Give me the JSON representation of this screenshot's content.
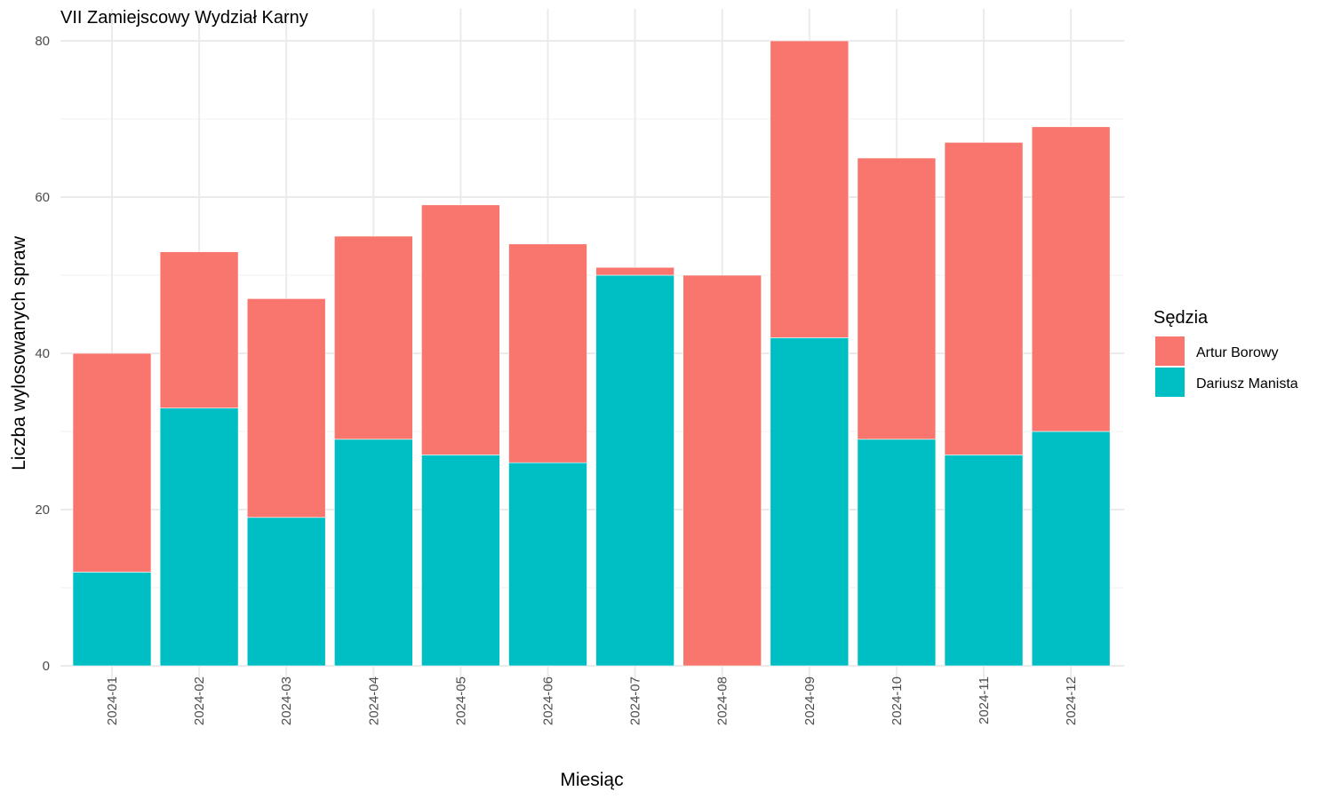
{
  "chart_data": {
    "type": "bar",
    "stacked": true,
    "title": "VII Zamiejscowy Wydział Karny",
    "xlabel": "Miesiąc",
    "ylabel": "Liczba wylosowanych spraw",
    "ylim": [
      0,
      80
    ],
    "yticks": [
      "0",
      "20",
      "40",
      "60",
      "80"
    ],
    "grid": true,
    "legend_position": "right",
    "legend_title": "Sędzia",
    "categories": [
      "2024-01",
      "2024-02",
      "2024-03",
      "2024-04",
      "2024-05",
      "2024-06",
      "2024-07",
      "2024-08",
      "2024-09",
      "2024-10",
      "2024-11",
      "2024-12"
    ],
    "series": [
      {
        "name": "Dariusz Manista",
        "color": "#00BFC4",
        "values": [
          12,
          33,
          19,
          29,
          27,
          26,
          50,
          0,
          42,
          29,
          27,
          30
        ]
      },
      {
        "name": "Artur Borowy",
        "color": "#F8766D",
        "values": [
          28,
          20,
          28,
          26,
          32,
          28,
          1,
          50,
          38,
          36,
          40,
          39
        ]
      }
    ],
    "legend_order": [
      "Artur Borowy",
      "Dariusz Manista"
    ]
  }
}
